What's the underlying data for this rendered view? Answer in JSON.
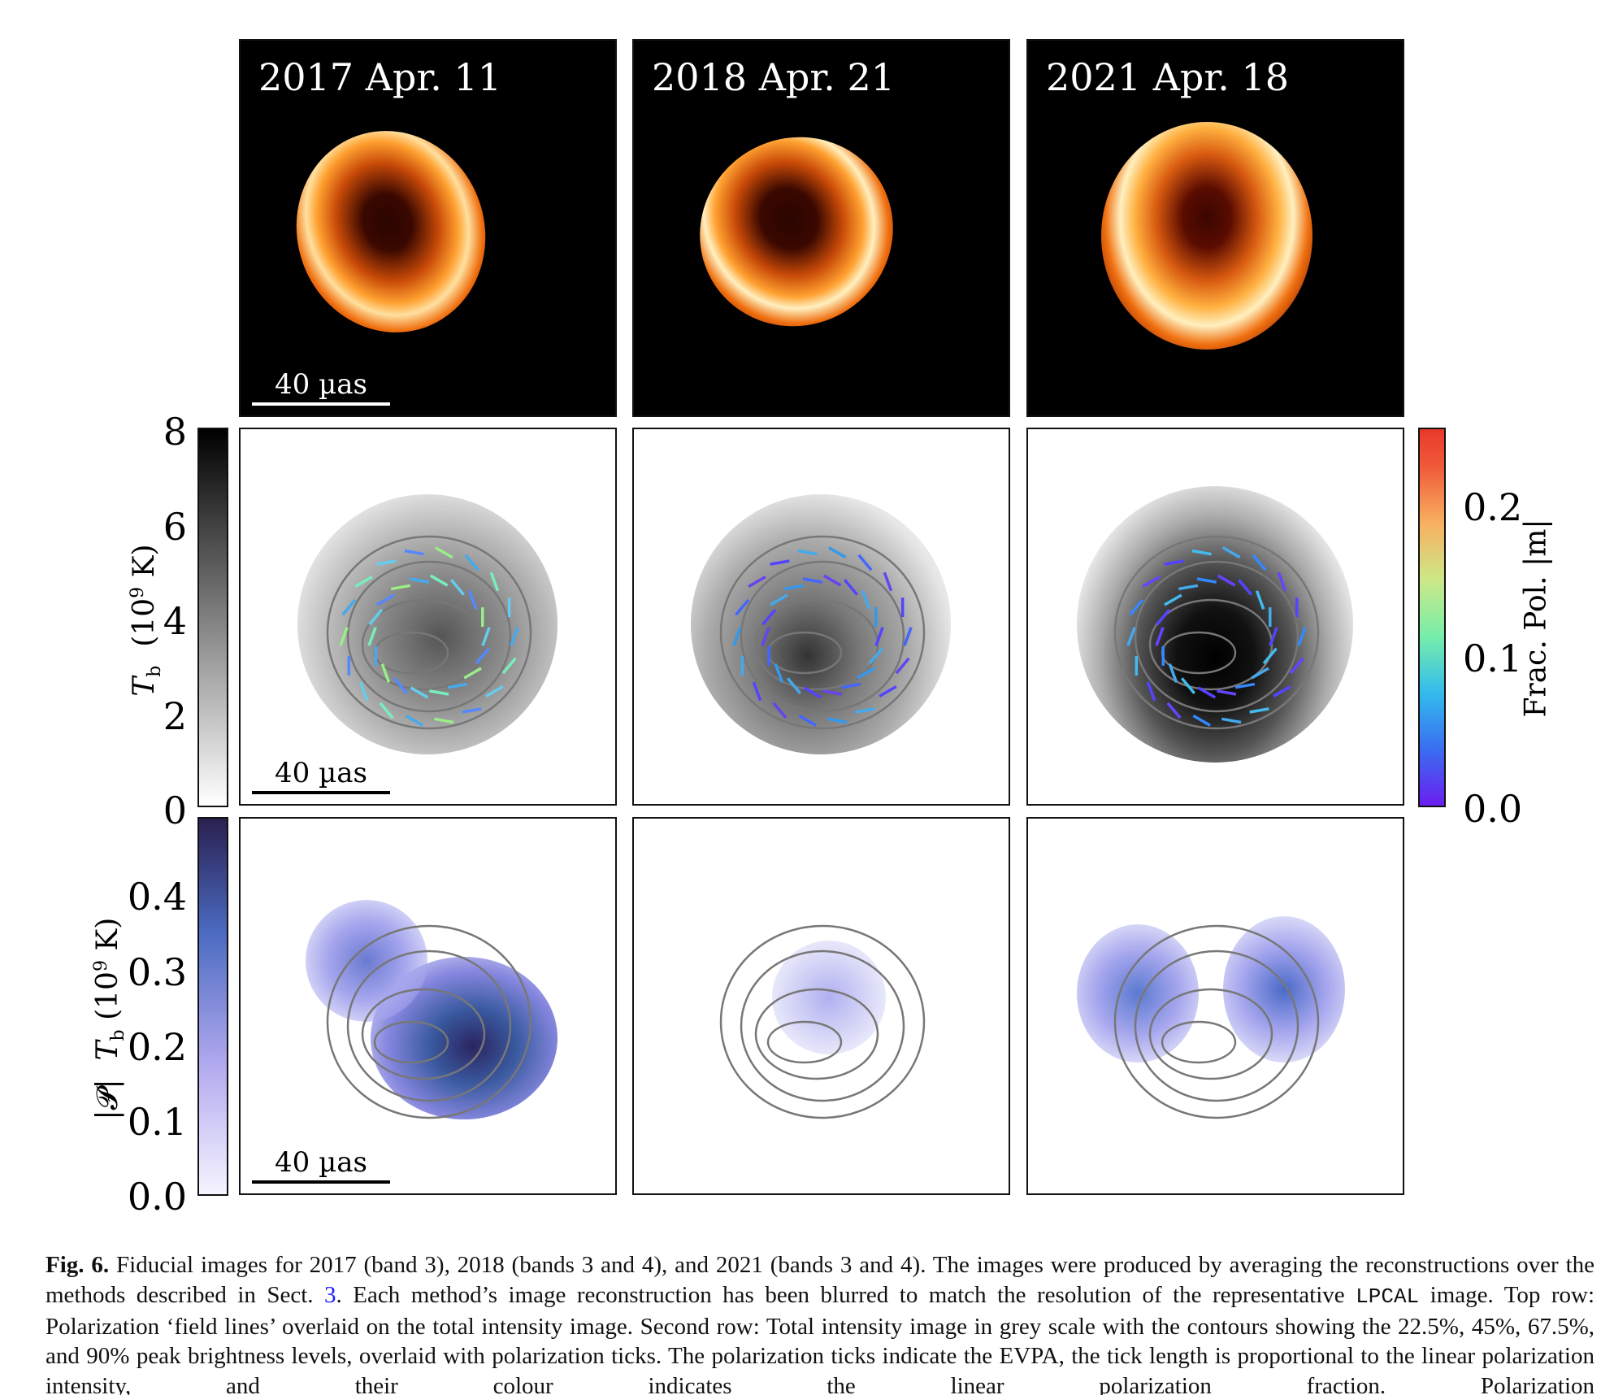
{
  "figure": {
    "panels_top_dates": [
      "2017 Apr. 11",
      "2018 Apr. 21",
      "2021 Apr. 18"
    ],
    "scale_bar_label": "40 µas",
    "row_descriptions_colormaps": {
      "top": "afmhot",
      "middle": "greys",
      "bottom": "purple-blue"
    },
    "colorbar_left_middle": {
      "label_var": "T",
      "label_sub": "b",
      "label_unit": "(10",
      "label_exp": "9",
      "label_unit_end": " K)",
      "ticks": [
        "0",
        "2",
        "4",
        "6",
        "8"
      ],
      "range": [
        0,
        8
      ]
    },
    "colorbar_left_bottom": {
      "label_prefix": "|𝓟|",
      "label_var": "T",
      "label_sub": "b",
      "label_unit": "(10",
      "label_exp": "9",
      "label_unit_end": " K)",
      "ticks": [
        "0.0",
        "0.1",
        "0.2",
        "0.3",
        "0.4"
      ],
      "range": [
        0,
        0.48
      ]
    },
    "colorbar_right": {
      "label": "Frac. Pol. |m|",
      "ticks": [
        "0.0",
        "0.1",
        "0.2"
      ],
      "range": [
        0,
        0.25
      ]
    }
  },
  "caption": {
    "label": "Fig. 6.",
    "text_1": " Fiducial images for 2017 (band 3), 2018 (bands 3 and 4), and 2021 (bands 3 and 4). The images were produced by averaging the reconstructions over the methods described in Sect. ",
    "sect_link": "3",
    "text_2": ". Each method’s image reconstruction has been blurred to match the resolution of the representative ",
    "code": "LPCAL",
    "text_3": " image. Top row: Polarization ‘field lines’ overlaid on the total intensity image. Second row: Total intensity image in grey scale with the contours showing the 22.5%, 45%, 67.5%, and 90% peak brightness levels, overlaid with polarization ticks. The polarization ticks indicate the EVPA, the tick length is proportional to the linear polarization intensity, and their colour indicates the linear polarization fraction. Polarization"
  }
}
